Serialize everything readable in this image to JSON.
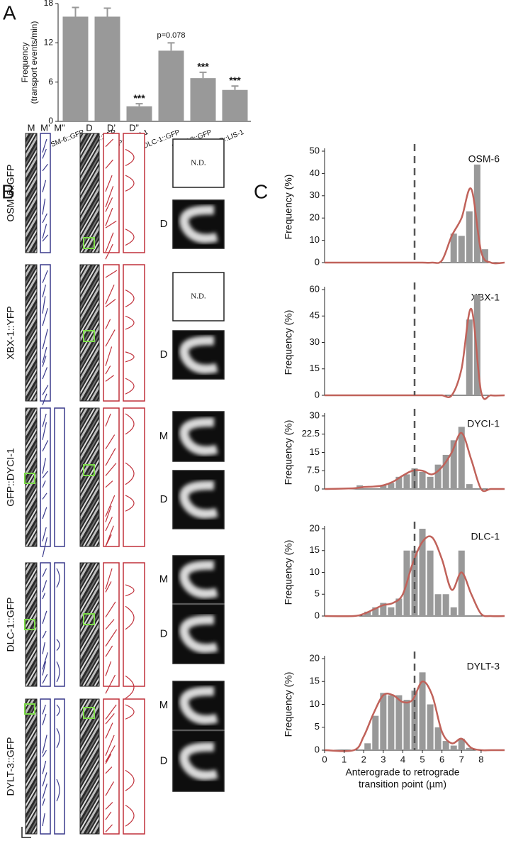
{
  "panel_labels": [
    "A",
    "B",
    "C"
  ],
  "chart_data": [
    {
      "type": "bar",
      "ylabel": [
        "Frequency",
        "(transport events/min)"
      ],
      "categories": [
        "OSM-6::GFP",
        "XBX-1::YFP",
        "GFP::DYCI-1",
        "DLC-1::GFP",
        "DYLT-3::GFP",
        "GFP::LIS-1"
      ],
      "values": [
        16,
        16,
        2.3,
        10.8,
        6.6,
        4.8
      ],
      "errors": [
        1.4,
        1.3,
        0.4,
        1.2,
        0.9,
        0.6
      ],
      "annotations": [
        null,
        null,
        "***",
        "p=0.078",
        "***",
        "***"
      ],
      "color": "#999999",
      "ylim": [
        0,
        18
      ],
      "yticks": [
        0,
        6,
        12,
        18
      ]
    },
    {
      "type": "histogram",
      "title": "OSM-6",
      "ylabel": "Frequency (%)",
      "bins": [
        1.6,
        2.0,
        2.4,
        2.8,
        3.2,
        3.6,
        4.0,
        4.4,
        4.8,
        5.2,
        5.6,
        6.0,
        6.4,
        6.8,
        7.2,
        7.6,
        8.0,
        8.4
      ],
      "counts": [
        0,
        0,
        0,
        0,
        0,
        0,
        0,
        0,
        0,
        0,
        0,
        0,
        13,
        12,
        23,
        44,
        6
      ],
      "color": "#999999",
      "fit": {
        "x": [
          0,
          1.5,
          2,
          2.5,
          3,
          3.5,
          4,
          4.5,
          5,
          5.5,
          6,
          6.5,
          7,
          7.5,
          8,
          8.5,
          9.2
        ],
        "y": [
          0,
          0,
          0,
          0,
          0,
          0,
          0,
          0,
          0,
          0,
          1,
          12,
          20,
          33,
          5,
          0,
          0
        ],
        "color": "#c0625a"
      },
      "vline": 4.6,
      "xlim": [
        0,
        9.2
      ],
      "ylim": [
        0,
        50
      ],
      "yticks": [
        0,
        10,
        20,
        30,
        40,
        50
      ]
    },
    {
      "type": "histogram",
      "title": "XBX-1",
      "ylabel": "Frequency (%)",
      "bins": [
        1.6,
        2.0,
        2.4,
        2.8,
        3.2,
        3.6,
        4.0,
        4.4,
        4.8,
        5.2,
        5.6,
        6.0,
        6.4,
        6.8,
        7.2,
        7.6,
        8.0,
        8.4
      ],
      "counts": [
        0,
        0,
        0,
        0,
        0,
        0,
        0,
        0,
        0,
        0,
        0,
        0,
        0,
        0,
        43,
        57,
        0
      ],
      "color": "#999999",
      "fit": {
        "x": [
          0,
          1.5,
          2,
          2.5,
          3,
          3.5,
          4,
          4.5,
          5,
          5.5,
          6,
          6.5,
          7,
          7.5,
          8,
          8.5,
          9.2
        ],
        "y": [
          0,
          0,
          0,
          0,
          0,
          0,
          0,
          0,
          0,
          0,
          0,
          0,
          15,
          49,
          2,
          0,
          0
        ],
        "color": "#c0625a"
      },
      "vline": 4.6,
      "xlim": [
        0,
        9.2
      ],
      "ylim": [
        0,
        60
      ],
      "yticks": [
        0,
        15,
        30,
        45,
        60
      ]
    },
    {
      "type": "histogram",
      "title": "DYCI-1",
      "ylabel": "Frequency (%)",
      "bins": [
        1.6,
        2.0,
        2.4,
        2.8,
        3.2,
        3.6,
        4.0,
        4.4,
        4.8,
        5.2,
        5.6,
        6.0,
        6.4,
        6.8,
        7.2,
        7.6,
        8.0,
        8.4
      ],
      "counts": [
        1.5,
        0,
        0,
        1.5,
        2.5,
        5,
        6,
        8.5,
        7,
        5,
        10,
        14,
        20,
        25.5,
        2,
        0,
        0
      ],
      "color": "#999999",
      "fit": {
        "x": [
          0,
          1.5,
          2,
          2.5,
          3,
          3.5,
          4,
          4.5,
          5,
          5.5,
          6,
          6.5,
          7,
          7.5,
          8,
          8.5,
          9.2
        ],
        "y": [
          0,
          0.3,
          0.8,
          1,
          1.5,
          3,
          5.5,
          7.5,
          7.5,
          6,
          9,
          15,
          23,
          12,
          0,
          0,
          0
        ],
        "color": "#c0625a"
      },
      "vline": 4.6,
      "xlim": [
        0,
        9.2
      ],
      "ylim": [
        0,
        30
      ],
      "yticks": [
        0,
        7.5,
        15,
        22.5,
        30
      ]
    },
    {
      "type": "histogram",
      "title": "DLC-1",
      "ylabel": "Frequency (%)",
      "bins": [
        1.6,
        2.0,
        2.4,
        2.8,
        3.2,
        3.6,
        4.0,
        4.4,
        4.8,
        5.2,
        5.6,
        6.0,
        6.4,
        6.8,
        7.2,
        7.6,
        8.0,
        8.4
      ],
      "counts": [
        0,
        1,
        2,
        3,
        2,
        4,
        15,
        15,
        20,
        15,
        5,
        5,
        2,
        15,
        0,
        0,
        0
      ],
      "color": "#999999",
      "fit": {
        "x": [
          0,
          1.5,
          2,
          2.5,
          3,
          3.5,
          4,
          4.5,
          5,
          5.5,
          6,
          6.5,
          7,
          7.5,
          8,
          8.5,
          9.2
        ],
        "y": [
          0,
          0,
          0.5,
          1.5,
          2.5,
          3,
          5,
          12,
          17,
          18,
          13,
          6,
          10,
          5,
          0.5,
          0,
          0
        ],
        "color": "#c0625a"
      },
      "vline": 4.6,
      "xlim": [
        0,
        9.2
      ],
      "ylim": [
        0,
        20
      ],
      "yticks": [
        0,
        5,
        10,
        15,
        20
      ]
    },
    {
      "type": "histogram",
      "title": "DYLT-3",
      "ylabel": "Frequency (%)",
      "bins": [
        1.6,
        2.0,
        2.4,
        2.8,
        3.2,
        3.6,
        4.0,
        4.4,
        4.8,
        5.2,
        5.6,
        6.0,
        6.4,
        6.8,
        7.2,
        7.6,
        8.0,
        8.4
      ],
      "counts": [
        0,
        1.5,
        7.5,
        12.5,
        12,
        12,
        11,
        13,
        17,
        10,
        5,
        2,
        1,
        2.5,
        0.5,
        0,
        0
      ],
      "color": "#999999",
      "fit": {
        "x": [
          0,
          1.5,
          2,
          2.5,
          3,
          3.5,
          4,
          4.5,
          5,
          5.5,
          6,
          6.5,
          7,
          7.5,
          8,
          8.5,
          9.2
        ],
        "y": [
          0,
          0,
          3,
          8,
          12,
          12,
          10.5,
          11,
          15,
          12,
          4,
          1.5,
          2.5,
          0.5,
          0,
          0,
          0
        ],
        "color": "#c0625a"
      },
      "vline": 4.6,
      "xlim": [
        0,
        9.2
      ],
      "ylim": [
        0,
        20
      ],
      "yticks": [
        0,
        5,
        10,
        15,
        20
      ],
      "xticks": [
        0,
        1,
        2,
        3,
        4,
        5,
        6,
        7,
        8
      ],
      "xlabel": [
        "Anterograde to retrograde",
        "transition point (µm)"
      ]
    }
  ],
  "panel_b": {
    "columns": [
      "M",
      "M’",
      "M”",
      "D",
      "D’",
      "D”"
    ],
    "rows": [
      {
        "label": "OSM-6::GFP",
        "note": "N.D.",
        "zoom_labels": [
          "D"
        ]
      },
      {
        "label": "XBX-1::YFP",
        "note": "N.D.",
        "zoom_labels": [
          "D"
        ]
      },
      {
        "label": "GFP::DYCI-1",
        "zoom_labels": [
          "M",
          "D"
        ]
      },
      {
        "label": "DLC-1::GFP",
        "zoom_labels": [
          "M",
          "D"
        ]
      },
      {
        "label": "DYLT-3::GFP",
        "zoom_labels": [
          "M",
          "D"
        ]
      }
    ]
  }
}
